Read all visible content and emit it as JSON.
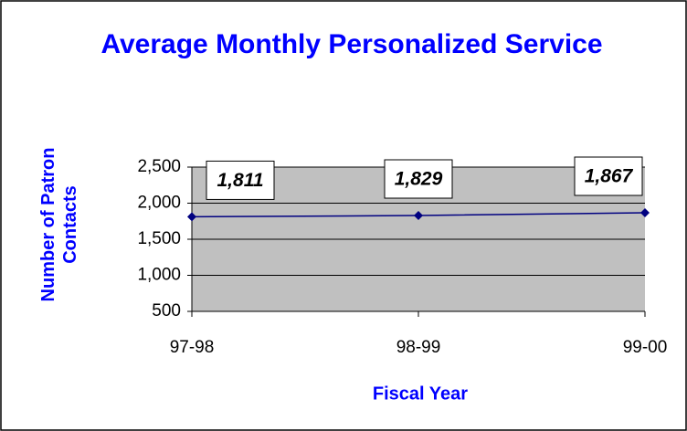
{
  "chart_data": {
    "type": "line",
    "title": "Average Monthly Personalized Service",
    "xlabel": "Fiscal Year",
    "ylabel": "Number of Patron Contacts",
    "categories": [
      "97-98",
      "98-99",
      "99-00"
    ],
    "series": [
      {
        "name": "Average Monthly Personalized Service",
        "color": "#000080",
        "values": [
          1811,
          1829,
          1867
        ],
        "value_labels": [
          "1,811",
          "1,829",
          "1,867"
        ]
      }
    ],
    "ylim": [
      500,
      2500
    ],
    "yticks": [
      {
        "value": 500,
        "label": "500"
      },
      {
        "value": 1000,
        "label": "1,000"
      },
      {
        "value": 1500,
        "label": "1,500"
      },
      {
        "value": 2000,
        "label": "2,000"
      },
      {
        "value": 2500,
        "label": "2,500"
      }
    ],
    "grid": true,
    "plot_background": "#c0c0c0"
  }
}
